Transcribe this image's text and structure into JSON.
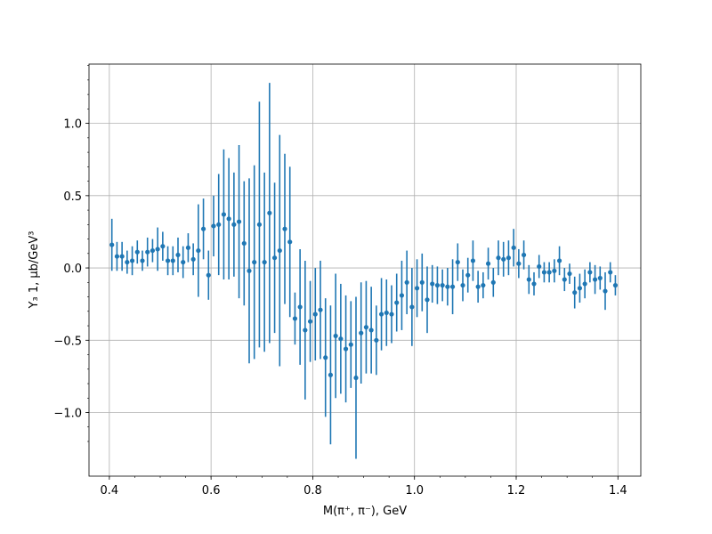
{
  "chart_data": {
    "type": "scatter",
    "title": "",
    "xlabel": "M(π⁺, π⁻), GeV",
    "ylabel": "Y₃ 1, μb/GeV³",
    "xlim": [
      0.36,
      1.445
    ],
    "ylim": [
      -1.44,
      1.41
    ],
    "xticks": [
      0.4,
      0.6,
      0.8,
      1.0,
      1.2,
      1.4
    ],
    "xtick_labels": [
      "0.4",
      "0.6",
      "0.8",
      "1.0",
      "1.2",
      "1.4"
    ],
    "yticks": [
      -1.0,
      -0.5,
      0.0,
      0.5,
      1.0
    ],
    "ytick_labels": [
      "−1.0",
      "−0.5",
      "0.0",
      "0.5",
      "1.0"
    ],
    "grid": true,
    "color": "#1f77b4",
    "error_bars": true,
    "points": [
      {
        "x": 0.405,
        "y": 0.16,
        "err": 0.18
      },
      {
        "x": 0.415,
        "y": 0.08,
        "err": 0.1
      },
      {
        "x": 0.425,
        "y": 0.08,
        "err": 0.1
      },
      {
        "x": 0.435,
        "y": 0.04,
        "err": 0.08
      },
      {
        "x": 0.445,
        "y": 0.05,
        "err": 0.1
      },
      {
        "x": 0.455,
        "y": 0.11,
        "err": 0.08
      },
      {
        "x": 0.465,
        "y": 0.05,
        "err": 0.07
      },
      {
        "x": 0.475,
        "y": 0.11,
        "err": 0.1
      },
      {
        "x": 0.485,
        "y": 0.12,
        "err": 0.08
      },
      {
        "x": 0.495,
        "y": 0.13,
        "err": 0.15
      },
      {
        "x": 0.505,
        "y": 0.15,
        "err": 0.1
      },
      {
        "x": 0.515,
        "y": 0.05,
        "err": 0.1
      },
      {
        "x": 0.525,
        "y": 0.05,
        "err": 0.1
      },
      {
        "x": 0.535,
        "y": 0.09,
        "err": 0.12
      },
      {
        "x": 0.545,
        "y": 0.04,
        "err": 0.11
      },
      {
        "x": 0.555,
        "y": 0.14,
        "err": 0.1
      },
      {
        "x": 0.565,
        "y": 0.06,
        "err": 0.11
      },
      {
        "x": 0.575,
        "y": 0.12,
        "err": 0.32
      },
      {
        "x": 0.585,
        "y": 0.27,
        "err": 0.21
      },
      {
        "x": 0.595,
        "y": -0.05,
        "err": 0.17
      },
      {
        "x": 0.605,
        "y": 0.29,
        "err": 0.21
      },
      {
        "x": 0.615,
        "y": 0.3,
        "err": 0.35
      },
      {
        "x": 0.625,
        "y": 0.37,
        "err": 0.45
      },
      {
        "x": 0.635,
        "y": 0.34,
        "err": 0.42
      },
      {
        "x": 0.645,
        "y": 0.3,
        "err": 0.36
      },
      {
        "x": 0.655,
        "y": 0.32,
        "err": 0.53
      },
      {
        "x": 0.665,
        "y": 0.17,
        "err": 0.43
      },
      {
        "x": 0.675,
        "y": -0.02,
        "err": 0.64
      },
      {
        "x": 0.685,
        "y": 0.04,
        "err": 0.67
      },
      {
        "x": 0.695,
        "y": 0.3,
        "err": 0.85
      },
      {
        "x": 0.705,
        "y": 0.04,
        "err": 0.62
      },
      {
        "x": 0.715,
        "y": 0.38,
        "err": 0.9
      },
      {
        "x": 0.725,
        "y": 0.07,
        "err": 0.52
      },
      {
        "x": 0.735,
        "y": 0.12,
        "err": 0.8
      },
      {
        "x": 0.745,
        "y": 0.27,
        "err": 0.52
      },
      {
        "x": 0.755,
        "y": 0.18,
        "err": 0.52
      },
      {
        "x": 0.765,
        "y": -0.35,
        "err": 0.18
      },
      {
        "x": 0.775,
        "y": -0.27,
        "err": 0.4
      },
      {
        "x": 0.785,
        "y": -0.43,
        "err": 0.48
      },
      {
        "x": 0.795,
        "y": -0.37,
        "err": 0.28
      },
      {
        "x": 0.805,
        "y": -0.32,
        "err": 0.32
      },
      {
        "x": 0.815,
        "y": -0.29,
        "err": 0.34
      },
      {
        "x": 0.825,
        "y": -0.62,
        "err": 0.41
      },
      {
        "x": 0.835,
        "y": -0.74,
        "err": 0.48
      },
      {
        "x": 0.845,
        "y": -0.47,
        "err": 0.43
      },
      {
        "x": 0.855,
        "y": -0.49,
        "err": 0.38
      },
      {
        "x": 0.865,
        "y": -0.56,
        "err": 0.37
      },
      {
        "x": 0.875,
        "y": -0.53,
        "err": 0.3
      },
      {
        "x": 0.885,
        "y": -0.76,
        "err": 0.56
      },
      {
        "x": 0.895,
        "y": -0.45,
        "err": 0.35
      },
      {
        "x": 0.905,
        "y": -0.41,
        "err": 0.32
      },
      {
        "x": 0.915,
        "y": -0.43,
        "err": 0.3
      },
      {
        "x": 0.925,
        "y": -0.5,
        "err": 0.24
      },
      {
        "x": 0.935,
        "y": -0.32,
        "err": 0.25
      },
      {
        "x": 0.945,
        "y": -0.31,
        "err": 0.23
      },
      {
        "x": 0.955,
        "y": -0.32,
        "err": 0.2
      },
      {
        "x": 0.965,
        "y": -0.24,
        "err": 0.2
      },
      {
        "x": 0.975,
        "y": -0.19,
        "err": 0.24
      },
      {
        "x": 0.985,
        "y": -0.1,
        "err": 0.22
      },
      {
        "x": 0.995,
        "y": -0.27,
        "err": 0.27
      },
      {
        "x": 1.005,
        "y": -0.14,
        "err": 0.2
      },
      {
        "x": 1.015,
        "y": -0.1,
        "err": 0.2
      },
      {
        "x": 1.025,
        "y": -0.22,
        "err": 0.23
      },
      {
        "x": 1.035,
        "y": -0.11,
        "err": 0.13
      },
      {
        "x": 1.045,
        "y": -0.12,
        "err": 0.13
      },
      {
        "x": 1.055,
        "y": -0.12,
        "err": 0.11
      },
      {
        "x": 1.065,
        "y": -0.13,
        "err": 0.13
      },
      {
        "x": 1.075,
        "y": -0.13,
        "err": 0.19
      },
      {
        "x": 1.085,
        "y": 0.04,
        "err": 0.13
      },
      {
        "x": 1.095,
        "y": -0.12,
        "err": 0.11
      },
      {
        "x": 1.105,
        "y": -0.05,
        "err": 0.12
      },
      {
        "x": 1.115,
        "y": 0.05,
        "err": 0.14
      },
      {
        "x": 1.125,
        "y": -0.13,
        "err": 0.11
      },
      {
        "x": 1.135,
        "y": -0.12,
        "err": 0.09
      },
      {
        "x": 1.145,
        "y": 0.03,
        "err": 0.11
      },
      {
        "x": 1.155,
        "y": -0.1,
        "err": 0.1
      },
      {
        "x": 1.165,
        "y": 0.07,
        "err": 0.12
      },
      {
        "x": 1.175,
        "y": 0.06,
        "err": 0.12
      },
      {
        "x": 1.185,
        "y": 0.07,
        "err": 0.12
      },
      {
        "x": 1.195,
        "y": 0.14,
        "err": 0.13
      },
      {
        "x": 1.205,
        "y": 0.03,
        "err": 0.1
      },
      {
        "x": 1.215,
        "y": 0.09,
        "err": 0.1
      },
      {
        "x": 1.225,
        "y": -0.08,
        "err": 0.1
      },
      {
        "x": 1.235,
        "y": -0.11,
        "err": 0.08
      },
      {
        "x": 1.245,
        "y": 0.01,
        "err": 0.08
      },
      {
        "x": 1.255,
        "y": -0.03,
        "err": 0.07
      },
      {
        "x": 1.265,
        "y": -0.03,
        "err": 0.07
      },
      {
        "x": 1.275,
        "y": -0.02,
        "err": 0.08
      },
      {
        "x": 1.285,
        "y": 0.05,
        "err": 0.1
      },
      {
        "x": 1.295,
        "y": -0.08,
        "err": 0.08
      },
      {
        "x": 1.305,
        "y": -0.04,
        "err": 0.07
      },
      {
        "x": 1.315,
        "y": -0.17,
        "err": 0.11
      },
      {
        "x": 1.325,
        "y": -0.14,
        "err": 0.1
      },
      {
        "x": 1.335,
        "y": -0.11,
        "err": 0.1
      },
      {
        "x": 1.345,
        "y": -0.03,
        "err": 0.07
      },
      {
        "x": 1.355,
        "y": -0.08,
        "err": 0.1
      },
      {
        "x": 1.365,
        "y": -0.07,
        "err": 0.08
      },
      {
        "x": 1.375,
        "y": -0.16,
        "err": 0.13
      },
      {
        "x": 1.385,
        "y": -0.03,
        "err": 0.07
      },
      {
        "x": 1.395,
        "y": -0.12,
        "err": 0.07
      }
    ]
  }
}
